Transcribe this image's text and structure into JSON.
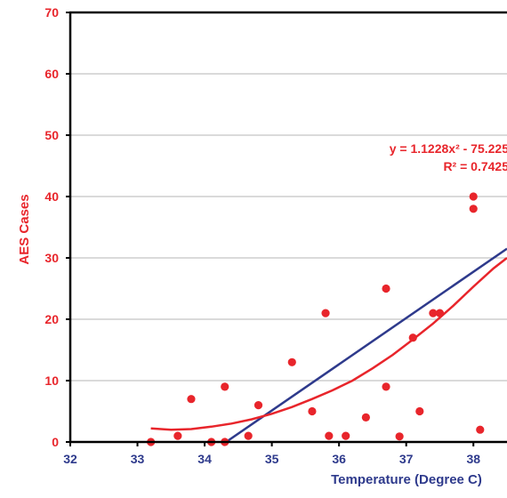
{
  "chart_data": {
    "type": "scatter",
    "title": "",
    "xlabel": "Temperature (Degree C)",
    "ylabel": "AES Cases",
    "xlim": [
      32,
      38.5
    ],
    "ylim": [
      0,
      70
    ],
    "x_ticks": [
      "32",
      "33",
      "34",
      "35",
      "36",
      "37",
      "38"
    ],
    "y_ticks": [
      "0",
      "10",
      "20",
      "30",
      "40",
      "50",
      "60",
      "70"
    ],
    "grid": "horizontal",
    "legend": "none",
    "series": [
      {
        "points": [
          [
            33.2,
            0
          ],
          [
            33.6,
            1
          ],
          [
            33.8,
            7
          ],
          [
            34.1,
            0
          ],
          [
            34.3,
            0
          ],
          [
            34.3,
            9
          ],
          [
            34.65,
            1
          ],
          [
            34.8,
            6
          ],
          [
            35.3,
            13
          ],
          [
            35.6,
            5
          ],
          [
            35.8,
            21
          ],
          [
            35.85,
            1
          ],
          [
            36.1,
            1
          ],
          [
            36.4,
            4
          ],
          [
            36.7,
            25
          ],
          [
            36.7,
            9
          ],
          [
            36.9,
            0.9
          ],
          [
            37.1,
            17
          ],
          [
            37.2,
            5
          ],
          [
            37.4,
            21
          ],
          [
            37.5,
            21
          ],
          [
            38.0,
            40
          ],
          [
            38.0,
            38
          ],
          [
            38.1,
            2
          ]
        ],
        "color": "#e8252b"
      }
    ],
    "fits": [
      {
        "kind": "linear",
        "color": "#2e3a8c",
        "segment": [
          [
            34.32,
            0
          ],
          [
            38.5,
            31.5
          ]
        ]
      },
      {
        "kind": "polynomial",
        "color": "#e8252b",
        "curve": [
          [
            33.2,
            2.2
          ],
          [
            33.5,
            2.0
          ],
          [
            33.8,
            2.1
          ],
          [
            34.1,
            2.5
          ],
          [
            34.4,
            3.0
          ],
          [
            34.7,
            3.7
          ],
          [
            35.0,
            4.6
          ],
          [
            35.3,
            5.7
          ],
          [
            35.6,
            7.0
          ],
          [
            35.9,
            8.4
          ],
          [
            36.2,
            10.0
          ],
          [
            36.5,
            12.0
          ],
          [
            36.8,
            14.2
          ],
          [
            37.1,
            16.7
          ],
          [
            37.4,
            19.3
          ],
          [
            37.7,
            22.2
          ],
          [
            38.0,
            25.3
          ],
          [
            38.3,
            28.3
          ],
          [
            38.5,
            30.0
          ]
        ]
      }
    ],
    "annotations": [
      "y = 1.1228x² - 75.225",
      "R² = 0.7425"
    ]
  }
}
